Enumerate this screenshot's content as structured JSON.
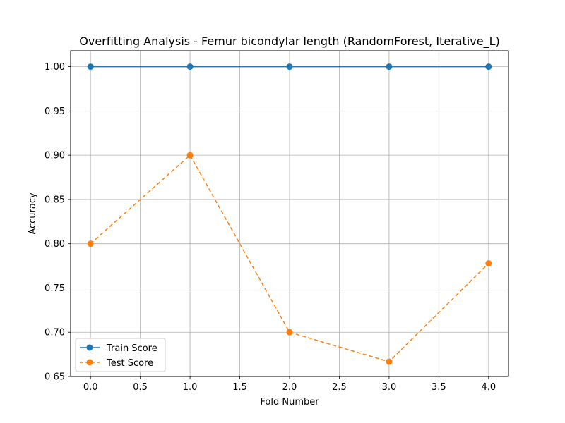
{
  "chart_data": {
    "type": "line",
    "title": "Overfitting Analysis - Femur bicondylar length (RandomForest, Iterative_L)",
    "xlabel": "Fold Number",
    "ylabel": "Accuracy",
    "xlim": [
      -0.2,
      4.2
    ],
    "ylim": [
      0.65,
      1.018
    ],
    "xticks": [
      0.0,
      0.5,
      1.0,
      1.5,
      2.0,
      2.5,
      3.0,
      3.5,
      4.0
    ],
    "xtick_labels": [
      "0.0",
      "0.5",
      "1.0",
      "1.5",
      "2.0",
      "2.5",
      "3.0",
      "3.5",
      "4.0"
    ],
    "yticks": [
      0.65,
      0.7,
      0.75,
      0.8,
      0.85,
      0.9,
      0.95,
      1.0
    ],
    "ytick_labels": [
      "0.65",
      "0.70",
      "0.75",
      "0.80",
      "0.85",
      "0.90",
      "0.95",
      "1.00"
    ],
    "grid": true,
    "legend_position": "lower-left",
    "x": [
      0,
      1,
      2,
      3,
      4
    ],
    "series": [
      {
        "name": "Train Score",
        "values": [
          1.0,
          1.0,
          1.0,
          1.0,
          1.0
        ],
        "color": "#1f77b4",
        "line_style": "solid",
        "marker": "circle"
      },
      {
        "name": "Test Score",
        "values": [
          0.8,
          0.9,
          0.7,
          0.6667,
          0.7778
        ],
        "color": "#ff7f0e",
        "line_style": "dashed",
        "marker": "circle"
      }
    ]
  }
}
